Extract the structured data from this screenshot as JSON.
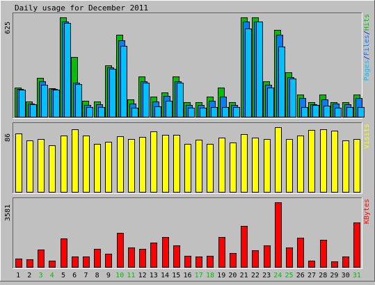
{
  "chart_data": {
    "type": "bar",
    "title": "Daily usage for December 2011",
    "categories": [
      "1",
      "2",
      "3",
      "4",
      "5",
      "6",
      "7",
      "8",
      "9",
      "10",
      "11",
      "12",
      "13",
      "14",
      "15",
      "16",
      "17",
      "18",
      "19",
      "20",
      "21",
      "22",
      "23",
      "24",
      "25",
      "26",
      "27",
      "28",
      "29",
      "30",
      "31"
    ],
    "weekend_days": [
      "3",
      "4",
      "10",
      "11",
      "17",
      "18",
      "24",
      "25",
      "31"
    ],
    "panels": [
      {
        "id": "pages-files-hits",
        "ymax_label": "625",
        "ylim": [
          0,
          625
        ],
        "legend": [
          {
            "label": "Pages",
            "color": "#00c0ff"
          },
          {
            "label": "/",
            "color": "#0000ff"
          },
          {
            "label": "Files",
            "color": "#0080ff"
          },
          {
            "label": "/",
            "color": "#0000ff"
          },
          {
            "label": "Hits",
            "color": "#00c000"
          }
        ],
        "series": [
          {
            "name": "Hits",
            "color": "#00c000",
            "values": [
              185,
              95,
              245,
              180,
              625,
              375,
              100,
              95,
              325,
              515,
              110,
              255,
              125,
              155,
              255,
              90,
              90,
              125,
              185,
              90,
              625,
              625,
              225,
              545,
              280,
              140,
              90,
              140,
              90,
              90,
              140
            ]
          },
          {
            "name": "Files",
            "color": "#0080ff",
            "values": [
              175,
              85,
              225,
              175,
              600,
              215,
              75,
              80,
              310,
              480,
              85,
              225,
              95,
              130,
              225,
              75,
              75,
              100,
              125,
              75,
              600,
              600,
              200,
              515,
              250,
              120,
              80,
              110,
              85,
              80,
              120
            ]
          },
          {
            "name": "Pages",
            "color": "#00c0ff",
            "values": [
              170,
              80,
              200,
              170,
              590,
              205,
              60,
              60,
              300,
              445,
              55,
              215,
              65,
              100,
              215,
              55,
              55,
              60,
              60,
              60,
              555,
              600,
              185,
              440,
              240,
              60,
              75,
              70,
              55,
              60,
              60
            ]
          }
        ]
      },
      {
        "id": "visits",
        "ymax_label": "86",
        "ylim": [
          0,
          86
        ],
        "legend": [
          {
            "label": "Visits",
            "color": "#ffff00"
          }
        ],
        "series": [
          {
            "name": "Visits",
            "color": "#ffff00",
            "values": [
              78,
              68,
              70,
              62,
              75,
              83,
              75,
              64,
              67,
              74,
              70,
              73,
              80,
              76,
              76,
              64,
              69,
              64,
              72,
              66,
              77,
              72,
              70,
              86,
              70,
              75,
              82,
              83,
              81,
              68,
              70
            ]
          }
        ]
      },
      {
        "id": "kbytes",
        "ymax_label": "3581",
        "ylim": [
          0,
          3581
        ],
        "legend": [
          {
            "label": "KBytes",
            "color": "#ff0000"
          }
        ],
        "series": [
          {
            "name": "KBytes",
            "color": "#ff0000",
            "values": [
              450,
              430,
              950,
              360,
              1580,
              590,
              590,
              990,
              740,
              1900,
              1090,
              1000,
              1350,
              1660,
              1200,
              620,
              590,
              620,
              1640,
              760,
              2280,
              940,
              1180,
              3581,
              1080,
              1620,
              350,
              1490,
              320,
              590,
              2460
            ]
          }
        ]
      }
    ]
  }
}
